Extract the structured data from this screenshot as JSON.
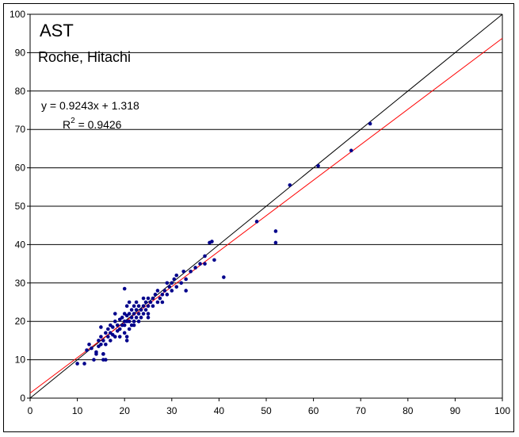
{
  "chart_data": {
    "type": "scatter",
    "title": "AST",
    "subtitle": "Roche, Hitachi",
    "xlim": [
      0,
      100
    ],
    "ylim": [
      0,
      100
    ],
    "xticks": [
      0,
      10,
      20,
      30,
      40,
      50,
      60,
      70,
      80,
      90,
      100
    ],
    "yticks": [
      0,
      10,
      20,
      30,
      40,
      50,
      60,
      70,
      80,
      90,
      100
    ],
    "xlabel": "",
    "ylabel": "",
    "grid": "horizontal",
    "colors": {
      "points": "#00008b",
      "regression": "#ff0000",
      "identity": "#000000"
    },
    "regression": {
      "slope": 0.9243,
      "intercept": 1.318,
      "equation_text": "y = 0.9243x + 1.318",
      "r2_label": "R",
      "r2_sup": "2",
      "r2_value_text": " = 0.9426"
    },
    "identity_line": {
      "slope": 1,
      "intercept": 0
    },
    "points": [
      [
        10,
        9
      ],
      [
        11.5,
        9
      ],
      [
        12,
        12.5
      ],
      [
        12.5,
        14
      ],
      [
        13,
        13
      ],
      [
        13.5,
        10
      ],
      [
        14,
        11.5
      ],
      [
        14,
        12
      ],
      [
        14.5,
        15
      ],
      [
        14.5,
        13.5
      ],
      [
        15,
        14
      ],
      [
        15,
        16
      ],
      [
        15,
        18.5
      ],
      [
        15.5,
        10
      ],
      [
        15.5,
        11.5
      ],
      [
        15.5,
        15
      ],
      [
        16,
        17
      ],
      [
        16,
        14
      ],
      [
        16.5,
        16
      ],
      [
        16.5,
        18
      ],
      [
        17,
        15
      ],
      [
        17,
        17
      ],
      [
        17,
        19
      ],
      [
        17.5,
        16.5
      ],
      [
        17.5,
        18.5
      ],
      [
        18,
        16
      ],
      [
        18,
        20
      ],
      [
        18,
        22
      ],
      [
        18.5,
        17.5
      ],
      [
        18.5,
        19
      ],
      [
        19,
        18
      ],
      [
        19,
        20.5
      ],
      [
        19,
        16
      ],
      [
        19.5,
        19
      ],
      [
        19.5,
        21
      ],
      [
        20,
        19
      ],
      [
        20,
        20
      ],
      [
        20,
        22
      ],
      [
        20,
        17
      ],
      [
        20.5,
        20
      ],
      [
        20.5,
        21.5
      ],
      [
        20.5,
        24
      ],
      [
        21,
        18
      ],
      [
        21,
        20
      ],
      [
        21,
        22
      ],
      [
        21,
        25
      ],
      [
        21.5,
        19
      ],
      [
        21.5,
        21
      ],
      [
        21.5,
        23
      ],
      [
        22,
        20
      ],
      [
        22,
        22
      ],
      [
        22,
        24
      ],
      [
        22,
        19
      ],
      [
        22.5,
        21
      ],
      [
        22.5,
        23
      ],
      [
        22.5,
        25
      ],
      [
        23,
        22
      ],
      [
        23,
        24
      ],
      [
        23,
        20
      ],
      [
        23.5,
        23
      ],
      [
        23.5,
        21
      ],
      [
        24,
        22
      ],
      [
        24,
        24
      ],
      [
        24,
        26
      ],
      [
        24.5,
        23
      ],
      [
        24.5,
        25
      ],
      [
        25,
        24
      ],
      [
        25,
        26
      ],
      [
        25,
        22
      ],
      [
        25.5,
        25
      ],
      [
        26,
        24
      ],
      [
        26,
        26
      ],
      [
        26.5,
        27
      ],
      [
        27,
        25
      ],
      [
        27,
        28
      ],
      [
        27.5,
        26
      ],
      [
        28,
        27
      ],
      [
        28,
        25
      ],
      [
        28.5,
        28
      ],
      [
        29,
        27
      ],
      [
        29,
        30
      ],
      [
        29.5,
        29
      ],
      [
        30,
        28
      ],
      [
        30,
        30
      ],
      [
        30.5,
        31
      ],
      [
        31,
        29
      ],
      [
        31,
        32
      ],
      [
        32,
        30
      ],
      [
        32.5,
        33
      ],
      [
        33,
        31
      ],
      [
        34,
        33
      ],
      [
        35,
        34
      ],
      [
        36,
        35
      ],
      [
        37,
        37
      ],
      [
        20,
        28.5
      ],
      [
        20.5,
        15
      ],
      [
        20.5,
        16
      ],
      [
        16,
        10
      ],
      [
        15.5,
        11.5
      ],
      [
        25,
        21
      ],
      [
        33,
        28
      ],
      [
        38,
        40.5
      ],
      [
        38.5,
        40.8
      ],
      [
        37,
        35
      ],
      [
        39,
        36
      ],
      [
        41,
        31.5
      ],
      [
        48,
        46
      ],
      [
        52,
        43.5
      ],
      [
        52,
        40.5
      ],
      [
        55,
        55.5
      ],
      [
        61,
        60.5
      ],
      [
        68,
        64.5
      ],
      [
        72,
        71.5
      ]
    ]
  }
}
